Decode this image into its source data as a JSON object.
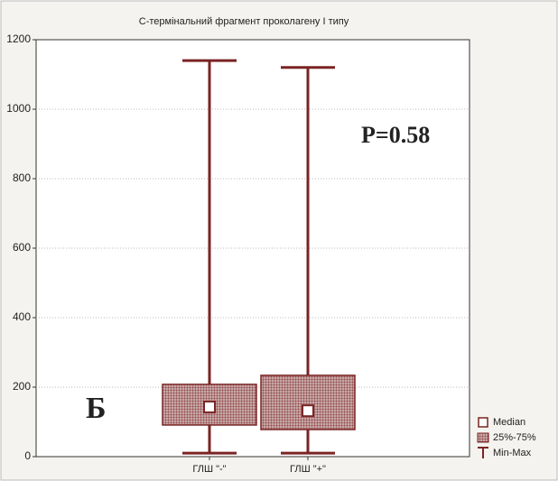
{
  "chart_data": {
    "type": "box",
    "title": "С-термінальний фрагмент проколагену І типу",
    "categories": [
      "ГЛШ \"-\"",
      "ГЛШ \"+\""
    ],
    "boxes": [
      {
        "min": 10,
        "q1": 91,
        "median": 143,
        "q3": 208,
        "max": 1140
      },
      {
        "min": 10,
        "q1": 78,
        "median": 132,
        "q3": 234,
        "max": 1120
      }
    ],
    "color": "#7a2424",
    "ylim": [
      0,
      1200
    ],
    "yticks": [
      0,
      200,
      400,
      600,
      800,
      1000,
      1200
    ],
    "grid": true,
    "annotations": [
      "P=0.58",
      "Б"
    ],
    "legend": [
      "Median",
      "25%-75%",
      "Min-Max"
    ],
    "legend_position": "lower right"
  }
}
